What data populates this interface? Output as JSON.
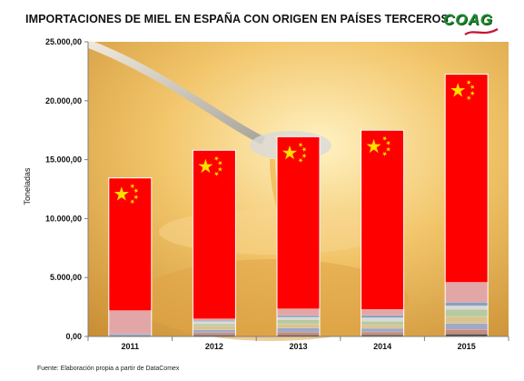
{
  "header": {
    "title": "IMPORTACIONES DE MIEL EN ESPAÑA CON ORIGEN EN PAÍSES TERCEROS"
  },
  "logo": {
    "text": "COAG",
    "color": "#1e8a2e"
  },
  "source_note": "Fuente: Elaboración propia a partir de DataComex",
  "chart_data": {
    "type": "bar",
    "stacked": true,
    "categories": [
      "2011",
      "2012",
      "2013",
      "2014",
      "2015"
    ],
    "ylabel": "Toneladas",
    "ylim": [
      0,
      25000
    ],
    "yticks": [
      0,
      5000,
      10000,
      15000,
      20000,
      25000
    ],
    "ytick_labels": [
      "0,00",
      "5.000,00",
      "10.000,00",
      "15.000,00",
      "20.000,00",
      "25.000,00"
    ],
    "totals": [
      13450,
      15800,
      16950,
      17500,
      22250
    ],
    "series": [
      {
        "color": "#4a4a4a",
        "values": [
          80,
          120,
          130,
          140,
          200
        ]
      },
      {
        "color": "#c98c7a",
        "values": [
          0,
          200,
          250,
          250,
          400
        ]
      },
      {
        "color": "#9fa8c8",
        "values": [
          150,
          250,
          350,
          300,
          500
        ]
      },
      {
        "color": "#d8c490",
        "values": [
          0,
          300,
          350,
          300,
          600
        ]
      },
      {
        "color": "#b7c9a0",
        "values": [
          0,
          200,
          350,
          300,
          600
        ]
      },
      {
        "color": "#d9d9d9",
        "values": [
          0,
          200,
          200,
          300,
          300
        ]
      },
      {
        "color": "#8aa0bf",
        "values": [
          0,
          100,
          150,
          200,
          300
        ]
      },
      {
        "color": "#e3a6a6",
        "values": [
          1970,
          130,
          570,
          510,
          1700
        ]
      },
      {
        "color": "#ff0000",
        "values": [
          11250,
          14300,
          14600,
          15200,
          17650
        ]
      }
    ],
    "annotation": "China flag on the top segment of every bar (country of origin China)",
    "colors": {
      "bar_main": "#ff0000",
      "star": "#ffde00",
      "axis": "#7f7f7f"
    },
    "grid": false
  }
}
